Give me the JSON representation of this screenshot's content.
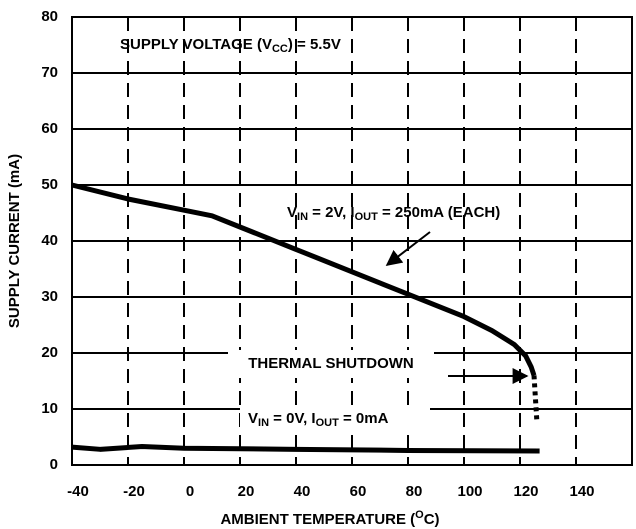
{
  "chart_data": {
    "type": "line",
    "x_label": [
      {
        "text": "AMBIENT TEMPERATURE ("
      },
      {
        "text": "O",
        "sup": true
      },
      {
        "text": "C)"
      }
    ],
    "y_label": "SUPPLY CURRENT (mA)",
    "xlim": [
      -40,
      160
    ],
    "xticks": [
      -40,
      -20,
      0,
      20,
      40,
      60,
      80,
      100,
      120,
      140
    ],
    "ylim": [
      0,
      80
    ],
    "yticks": [
      0,
      10,
      20,
      30,
      40,
      50,
      60,
      70,
      80
    ],
    "grid": true,
    "series": [
      {
        "color": "#000000",
        "dash": false,
        "x": [
          -40,
          -20,
          0,
          10,
          20,
          40,
          60,
          80,
          100,
          110,
          118,
          122,
          124,
          125
        ],
        "values": [
          50,
          47.5,
          45.5,
          44.5,
          42.5,
          38.5,
          34.5,
          30.5,
          26.5,
          24,
          21.5,
          19.5,
          17.5,
          16
        ]
      },
      {
        "color": "#000000",
        "dash": true,
        "x": [
          125,
          126
        ],
        "values": [
          16,
          8
        ]
      },
      {
        "color": "#000000",
        "dash": false,
        "x": [
          -40,
          -30,
          -15,
          0,
          40,
          80,
          127
        ],
        "values": [
          3.2,
          2.8,
          3.3,
          3,
          2.8,
          2.6,
          2.5
        ]
      }
    ],
    "annotations": [
      [
        {
          "text": "SUPPLY VOLTAGE (V"
        },
        {
          "text": "CC",
          "sub": true
        },
        {
          "text": ") = 5.5V"
        }
      ],
      [
        {
          "text": "V"
        },
        {
          "text": "IN",
          "sub": true
        },
        {
          "text": " = 2V, I"
        },
        {
          "text": "OUT",
          "sub": true
        },
        {
          "text": " = 250mA (EACH)"
        }
      ],
      [
        {
          "text": "THERMAL SHUTDOWN"
        }
      ],
      [
        {
          "text": "V"
        },
        {
          "text": "IN",
          "sub": true
        },
        {
          "text": " = 0V, I"
        },
        {
          "text": "OUT",
          "sub": true
        },
        {
          "text": " = 0mA"
        }
      ]
    ]
  }
}
